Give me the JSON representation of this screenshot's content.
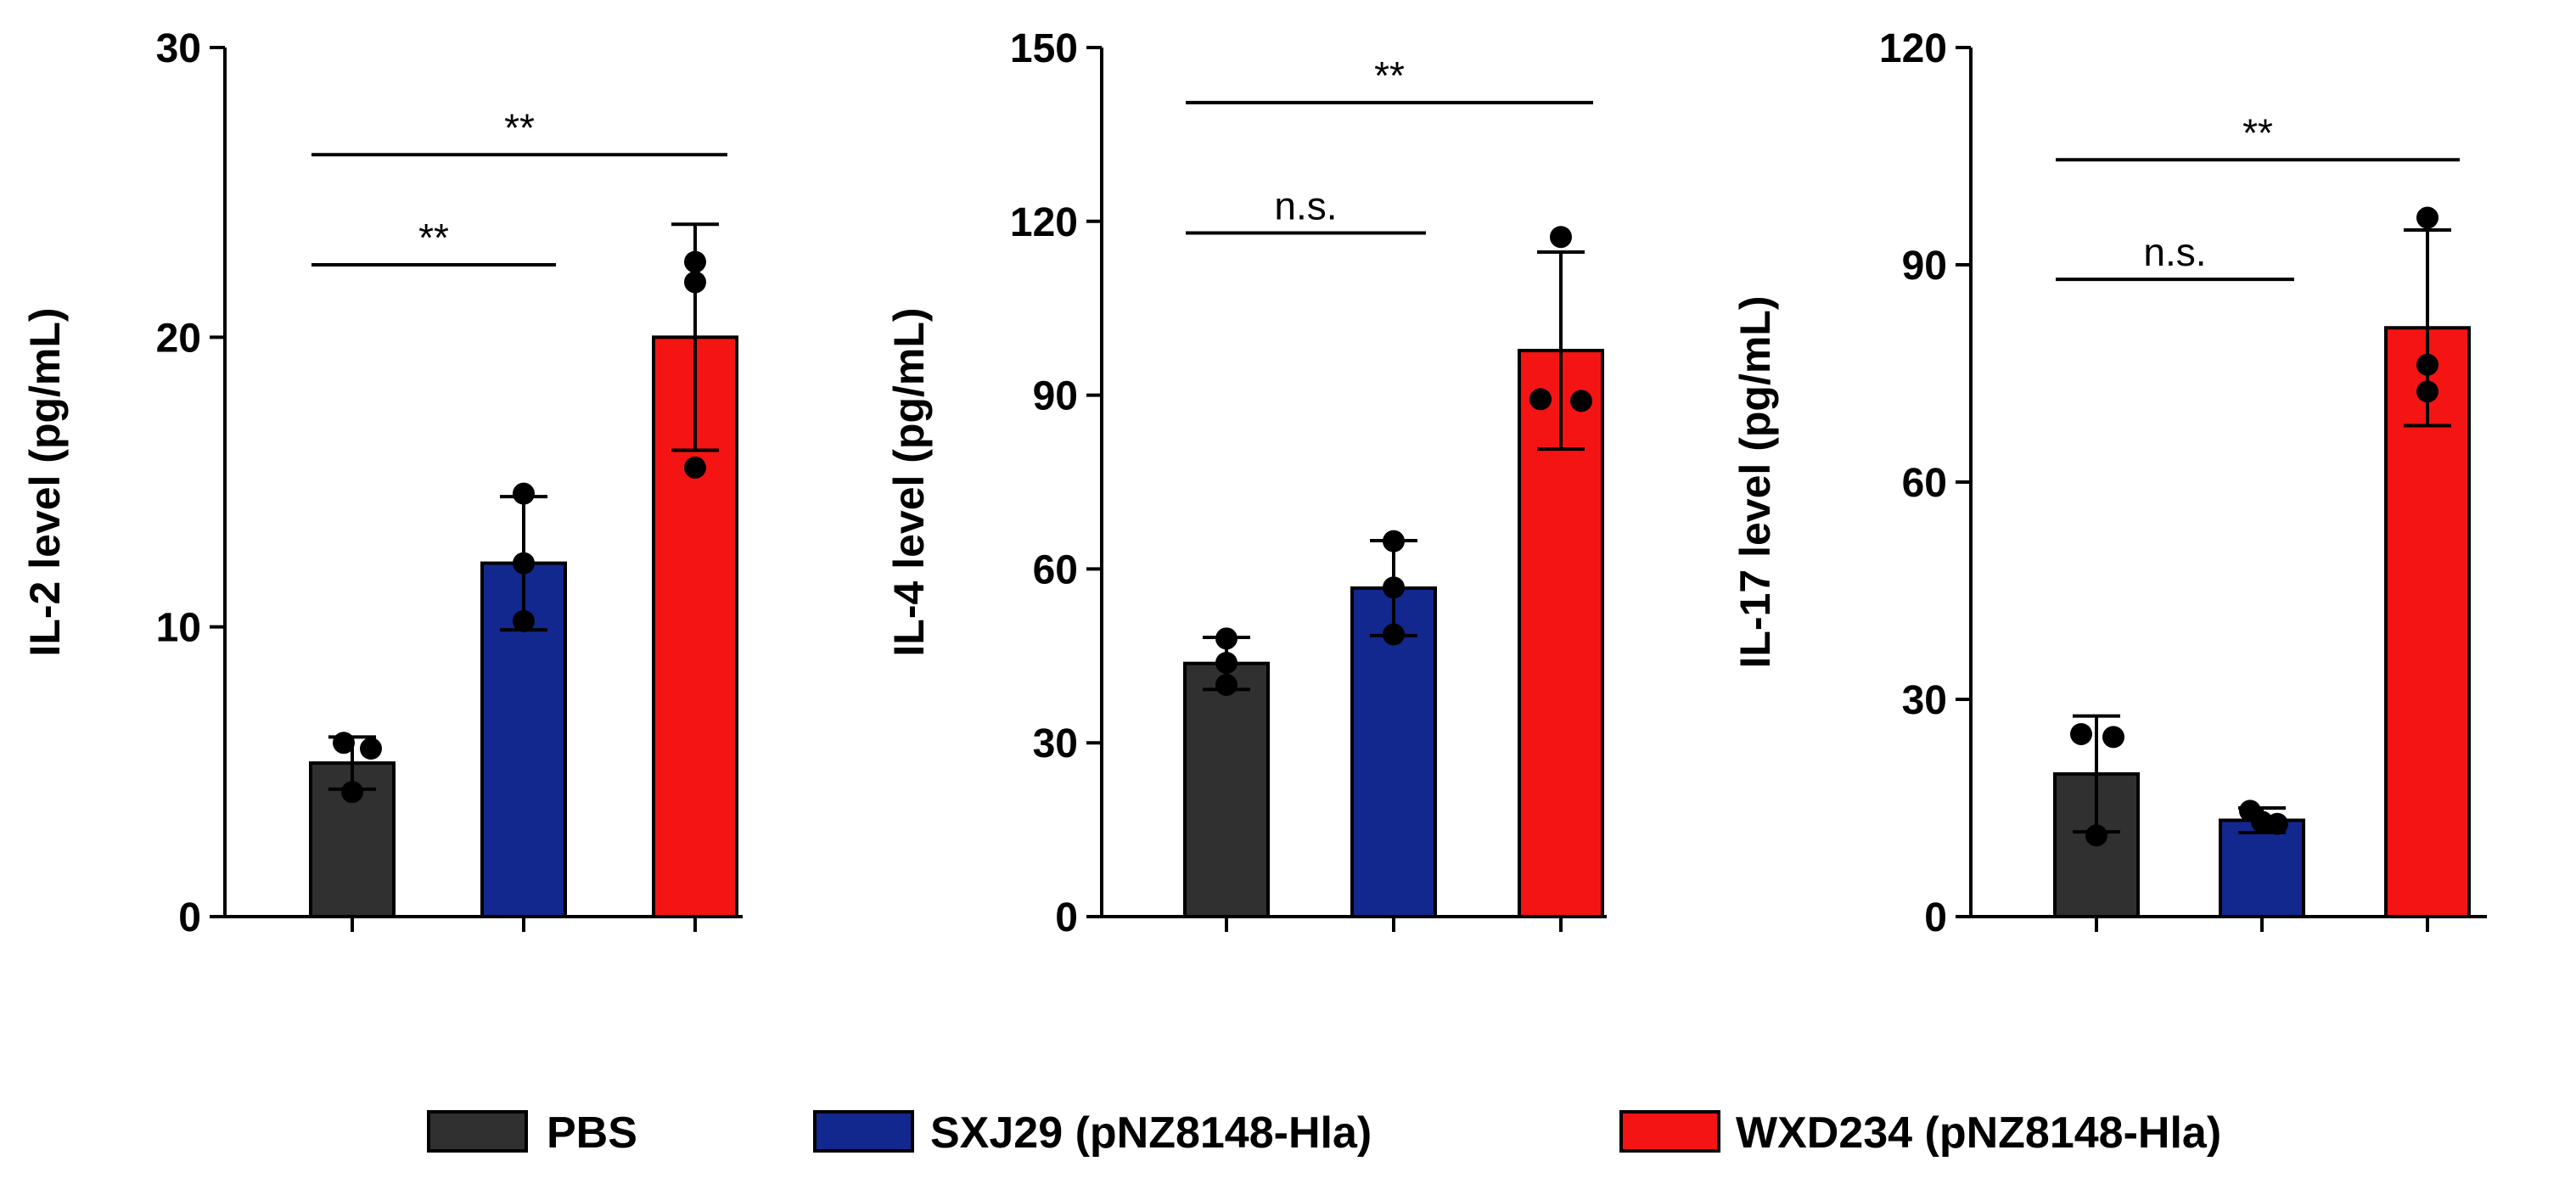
{
  "groups": [
    "PBS",
    "SXJ29 (pNZ8148-Hla)",
    "WXD234 (pNZ8148-Hla)"
  ],
  "colors": {
    "PBS": "#2f302f",
    "SXJ29": "#12288f",
    "WXD234": "#f51414"
  },
  "chart_data": [
    {
      "type": "bar",
      "ylabel": "IL-2 level (pg/mL)",
      "ylim": [
        0,
        30
      ],
      "yticks": [
        0,
        10,
        20,
        30
      ],
      "yticklabels": [
        "0",
        "10",
        "20",
        "30"
      ],
      "categories": [
        "PBS",
        "SXJ29 (pNZ8148-Hla)",
        "WXD234 (pNZ8148-Hla)"
      ],
      "values": [
        5.3,
        12.2,
        20.0
      ],
      "errors": [
        0.9,
        2.3,
        3.9
      ],
      "points": [
        [
          6.0,
          5.8,
          4.3
        ],
        [
          14.6,
          12.2,
          10.2
        ],
        [
          22.6,
          21.9,
          15.5
        ]
      ],
      "significance": [
        {
          "from": 0,
          "to": 1,
          "label": "**",
          "y": 22.5
        },
        {
          "from": 0,
          "to": 2,
          "label": "**",
          "y": 26.3
        }
      ]
    },
    {
      "type": "bar",
      "ylabel": "IL-4 level (pg/mL)",
      "ylim": [
        0,
        150
      ],
      "yticks": [
        0,
        30,
        60,
        90,
        120,
        150
      ],
      "yticklabels": [
        "0",
        "30",
        "60",
        "90",
        "120",
        "150"
      ],
      "categories": [
        "PBS",
        "SXJ29 (pNZ8148-Hla)",
        "WXD234 (pNZ8148-Hla)"
      ],
      "values": [
        43.7,
        56.7,
        97.7
      ],
      "errors": [
        4.5,
        8.2,
        17.0
      ],
      "points": [
        [
          48.0,
          43.8,
          40.0
        ],
        [
          64.8,
          56.8,
          48.7
        ],
        [
          117.3,
          89.3,
          89.0
        ]
      ],
      "significance": [
        {
          "from": 0,
          "to": 1,
          "label": "n.s.",
          "y": 118.0
        },
        {
          "from": 0,
          "to": 2,
          "label": "**",
          "y": 140.5
        }
      ]
    },
    {
      "type": "bar",
      "ylabel": "IL-17 level (pg/mL)",
      "ylim": [
        0,
        120
      ],
      "yticks": [
        0,
        30,
        60,
        90,
        120
      ],
      "yticklabels": [
        "0",
        "30",
        "60",
        "90",
        "120"
      ],
      "categories": [
        "PBS",
        "SXJ29 (pNZ8148-Hla)",
        "WXD234 (pNZ8148-Hla)"
      ],
      "values": [
        19.7,
        13.3,
        81.3
      ],
      "errors": [
        8.0,
        1.7,
        13.5
      ],
      "points": [
        [
          25.2,
          24.8,
          11.2
        ],
        [
          14.6,
          13.1,
          12.8
        ],
        [
          96.5,
          76.2,
          72.5
        ]
      ],
      "significance": [
        {
          "from": 0,
          "to": 1,
          "label": "n.s.",
          "y": 88.0
        },
        {
          "from": 0,
          "to": 2,
          "label": "**",
          "y": 104.5
        }
      ]
    }
  ],
  "legend": {
    "position": "bottom",
    "items": [
      {
        "label": "PBS",
        "color": "#2f302f"
      },
      {
        "label": "SXJ29 (pNZ8148-Hla)",
        "color": "#12288f"
      },
      {
        "label": "WXD234 (pNZ8148-Hla)",
        "color": "#f51414"
      }
    ]
  }
}
